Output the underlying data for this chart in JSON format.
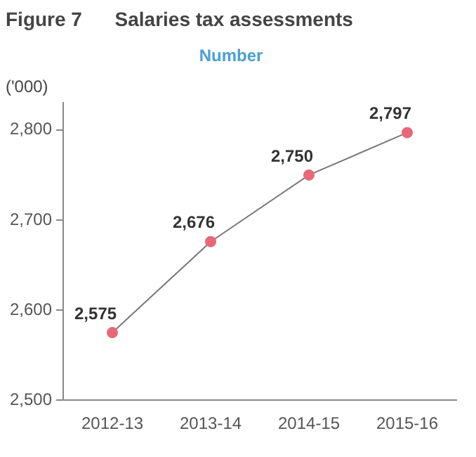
{
  "chart_data": {
    "type": "line",
    "title": "Figure 7      Salaries tax assessments",
    "subtitle": "Number",
    "ylabel": "('000)",
    "categories": [
      "2012-13",
      "2013-14",
      "2014-15",
      "2015-16"
    ],
    "series": [
      {
        "color": "#e8687a",
        "values": [
          2575,
          2676,
          2750,
          2797
        ],
        "value_labels": [
          "2,575",
          "2,676",
          "2,750",
          "2,797"
        ]
      }
    ],
    "ylim": [
      2500,
      2830
    ],
    "yticks": [
      {
        "value": 2500,
        "label": "2,500"
      },
      {
        "value": 2600,
        "label": "2,600"
      },
      {
        "value": 2700,
        "label": "2,700"
      },
      {
        "value": 2800,
        "label": "2,800"
      }
    ],
    "grid": false,
    "legend": false,
    "marker": "circle",
    "line_style": "solid"
  }
}
